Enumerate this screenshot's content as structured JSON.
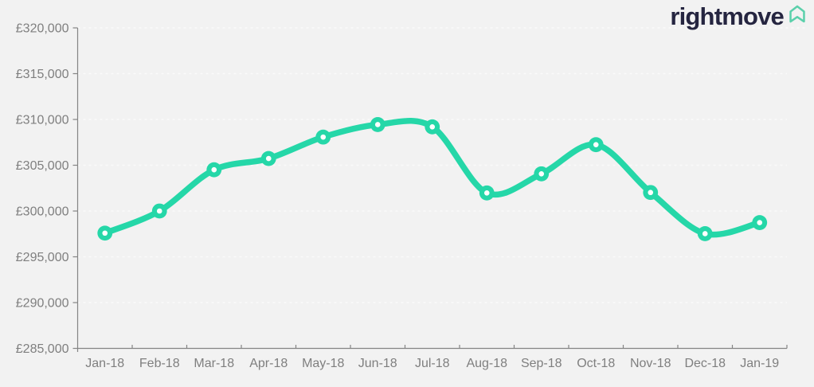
{
  "logo": {
    "text": "rightmove"
  },
  "colors": {
    "background": "#f2f2f2",
    "line": "#25d7a8",
    "marker_center": "#ffffff",
    "axis": "#858585",
    "label": "#7f7f7f",
    "grid": "#fafafa",
    "logo_text": "#252540",
    "logo_icon": "#5bd0ab"
  },
  "chart_data": {
    "type": "line",
    "categories": [
      "Jan-18",
      "Feb-18",
      "Mar-18",
      "Apr-18",
      "May-18",
      "Jun-18",
      "Jul-18",
      "Aug-18",
      "Sep-18",
      "Oct-18",
      "Nov-18",
      "Dec-18",
      "Jan-19"
    ],
    "values": [
      297587,
      300001,
      304504,
      305732,
      308075,
      309439,
      309191,
      301973,
      304061,
      307245,
      302023,
      297527,
      298734
    ],
    "currency_prefix": "£",
    "ylim": [
      285000,
      320000
    ],
    "ytick_step": 5000,
    "y_ticks": [
      {
        "value": 285000,
        "label": "£285,000"
      },
      {
        "value": 290000,
        "label": "£290,000"
      },
      {
        "value": 295000,
        "label": "£295,000"
      },
      {
        "value": 300000,
        "label": "£300,000"
      },
      {
        "value": 305000,
        "label": "£305,000"
      },
      {
        "value": 310000,
        "label": "£310,000"
      },
      {
        "value": 315000,
        "label": "£315,000"
      },
      {
        "value": 320000,
        "label": "£320,000"
      }
    ],
    "grid": "horizontal-dashed",
    "legend_position": "none",
    "marker": "circle-with-white-center"
  }
}
